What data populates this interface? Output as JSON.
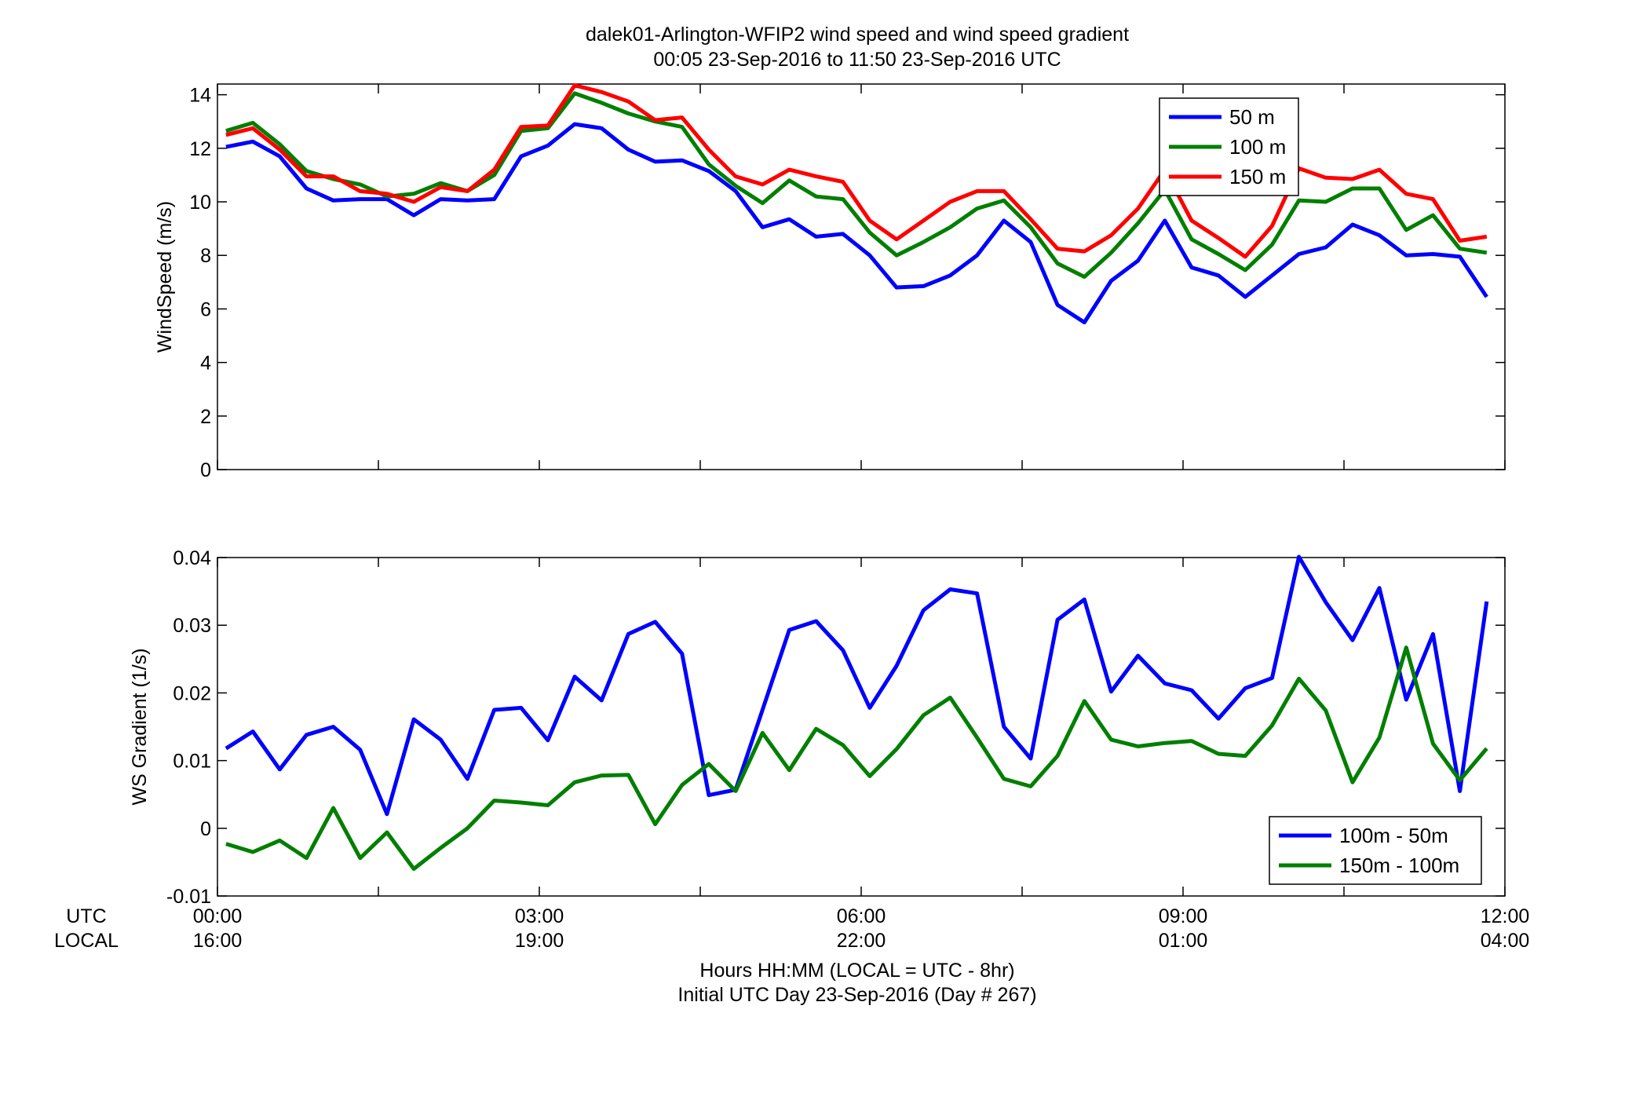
{
  "figure": {
    "title_line1": "dalek01-Arlington-WFIP2  wind speed and wind speed gradient",
    "title_line2": "00:05 23-Sep-2016 to 11:50 23-Sep-2016  UTC",
    "xlabel_line1": "Hours HH:MM  (LOCAL = UTC - 8hr)",
    "xlabel_line2": "Initial UTC Day 23-Sep-2016 (Day # 267)",
    "row_label_utc": "UTC",
    "row_label_local": "LOCAL"
  },
  "chart_data": [
    {
      "type": "line",
      "ylabel": "WindSpeed (m/s)",
      "ylim": [
        0,
        14.4
      ],
      "xlim": [
        "00:00",
        "12:00"
      ],
      "yticks": [
        "0",
        "2",
        "4",
        "6",
        "8",
        "10",
        "12",
        "14"
      ],
      "xticks_utc": [
        "00:00",
        "03:00",
        "06:00",
        "09:00",
        "12:00"
      ],
      "xticks_local": [
        "16:00",
        "19:00",
        "22:00",
        "01:00",
        "04:00"
      ],
      "legend_position": "top-right",
      "x_hours": [
        0.08,
        0.33,
        0.58,
        0.83,
        1.08,
        1.33,
        1.58,
        1.83,
        2.08,
        2.33,
        2.58,
        2.83,
        3.08,
        3.33,
        3.58,
        3.83,
        4.08,
        4.33,
        4.58,
        4.83,
        5.08,
        5.33,
        5.58,
        5.83,
        6.08,
        6.33,
        6.58,
        6.83,
        7.08,
        7.33,
        7.58,
        7.83,
        8.08,
        8.33,
        8.58,
        8.83,
        9.08,
        9.33,
        9.58,
        9.83,
        10.08,
        10.33,
        10.58,
        10.83,
        11.08,
        11.33,
        11.58,
        11.83
      ],
      "series": [
        {
          "name": "50 m",
          "color": "#0000ff",
          "values": [
            12.05,
            12.25,
            11.7,
            10.5,
            10.05,
            10.1,
            10.1,
            9.5,
            10.1,
            10.05,
            10.1,
            11.7,
            12.1,
            12.9,
            12.75,
            11.95,
            11.5,
            11.55,
            11.15,
            10.4,
            9.05,
            9.35,
            8.7,
            8.8,
            8.0,
            6.8,
            6.85,
            7.25,
            8.0,
            9.3,
            8.5,
            6.15,
            5.5,
            7.05,
            7.8,
            9.3,
            7.55,
            7.25,
            6.45,
            7.25,
            8.05,
            8.3,
            9.15,
            8.75,
            8.0,
            8.05,
            7.95,
            6.45
          ]
        },
        {
          "name": "100 m",
          "color": "#007f00",
          "values": [
            12.65,
            12.95,
            12.15,
            11.15,
            10.85,
            10.65,
            10.2,
            10.3,
            10.7,
            10.4,
            11.0,
            12.65,
            12.75,
            14.05,
            13.7,
            13.3,
            13.0,
            12.8,
            11.4,
            10.6,
            9.95,
            10.8,
            10.2,
            10.1,
            8.85,
            8.0,
            8.5,
            9.05,
            9.75,
            10.05,
            9.05,
            7.7,
            7.2,
            8.1,
            9.2,
            10.45,
            8.6,
            8.05,
            7.45,
            8.4,
            10.05,
            10.0,
            10.5,
            10.5,
            8.95,
            9.5,
            8.25,
            8.1
          ]
        },
        {
          "name": "150 m",
          "color": "#ff0000",
          "values": [
            12.5,
            12.75,
            11.95,
            10.95,
            10.95,
            10.4,
            10.3,
            10.0,
            10.55,
            10.4,
            11.2,
            12.8,
            12.85,
            14.35,
            14.1,
            13.75,
            13.05,
            13.15,
            11.95,
            10.95,
            10.65,
            11.2,
            10.95,
            10.75,
            9.3,
            8.6,
            9.3,
            10.0,
            10.4,
            10.4,
            9.35,
            8.25,
            8.15,
            8.75,
            9.75,
            11.2,
            9.3,
            8.65,
            7.95,
            9.1,
            11.25,
            10.9,
            10.85,
            11.2,
            10.3,
            10.1,
            8.55,
            8.7
          ]
        }
      ]
    },
    {
      "type": "line",
      "ylabel": "WS Gradient (1/s)",
      "ylim": [
        -0.01,
        0.04
      ],
      "xlim": [
        "00:00",
        "12:00"
      ],
      "yticks": [
        "-0.01",
        "0",
        "0.01",
        "0.02",
        "0.03",
        "0.04"
      ],
      "xticks_utc": [
        "00:00",
        "03:00",
        "06:00",
        "09:00",
        "12:00"
      ],
      "xticks_local": [
        "16:00",
        "19:00",
        "22:00",
        "01:00",
        "04:00"
      ],
      "legend_position": "bottom-right",
      "x_hours": [
        0.08,
        0.33,
        0.58,
        0.83,
        1.08,
        1.33,
        1.58,
        1.83,
        2.08,
        2.33,
        2.58,
        2.83,
        3.08,
        3.33,
        3.58,
        3.83,
        4.08,
        4.33,
        4.58,
        4.83,
        5.08,
        5.33,
        5.58,
        5.83,
        6.08,
        6.33,
        6.58,
        6.83,
        7.08,
        7.33,
        7.58,
        7.83,
        8.08,
        8.33,
        8.58,
        8.83,
        9.08,
        9.33,
        9.58,
        9.83,
        10.08,
        10.33,
        10.58,
        10.83,
        11.08,
        11.33,
        11.58,
        11.83
      ],
      "series": [
        {
          "name": "100m - 50m",
          "color": "#0000ff",
          "values": [
            0.0118,
            0.0143,
            0.0087,
            0.0138,
            0.015,
            0.0116,
            0.0021,
            0.0161,
            0.0131,
            0.0073,
            0.0175,
            0.0178,
            0.013,
            0.0224,
            0.0189,
            0.0287,
            0.0305,
            0.0258,
            0.0049,
            0.0057,
            0.0175,
            0.0293,
            0.0306,
            0.0263,
            0.0178,
            0.024,
            0.0322,
            0.0353,
            0.0347,
            0.015,
            0.0103,
            0.0308,
            0.0338,
            0.0202,
            0.0255,
            0.0214,
            0.0204,
            0.0162,
            0.0207,
            0.0222,
            0.0401,
            0.0334,
            0.0278,
            0.0355,
            0.019,
            0.0287,
            0.0055,
            0.0335
          ]
        },
        {
          "name": "150m - 100m",
          "color": "#007f00",
          "values": [
            -0.0023,
            -0.0035,
            -0.0018,
            -0.0044,
            0.003,
            -0.0044,
            -0.0006,
            -0.006,
            -0.0029,
            0.0,
            0.0041,
            0.0038,
            0.0034,
            0.0068,
            0.0078,
            0.0079,
            0.0006,
            0.0064,
            0.0095,
            0.0055,
            0.0141,
            0.0086,
            0.0147,
            0.0123,
            0.0077,
            0.0117,
            0.0167,
            0.0193,
            0.0134,
            0.0073,
            0.0062,
            0.0107,
            0.0188,
            0.0131,
            0.0121,
            0.0126,
            0.0129,
            0.011,
            0.0107,
            0.0152,
            0.0221,
            0.0174,
            0.0068,
            0.0134,
            0.0267,
            0.0125,
            0.0071,
            0.0118
          ]
        }
      ]
    }
  ]
}
